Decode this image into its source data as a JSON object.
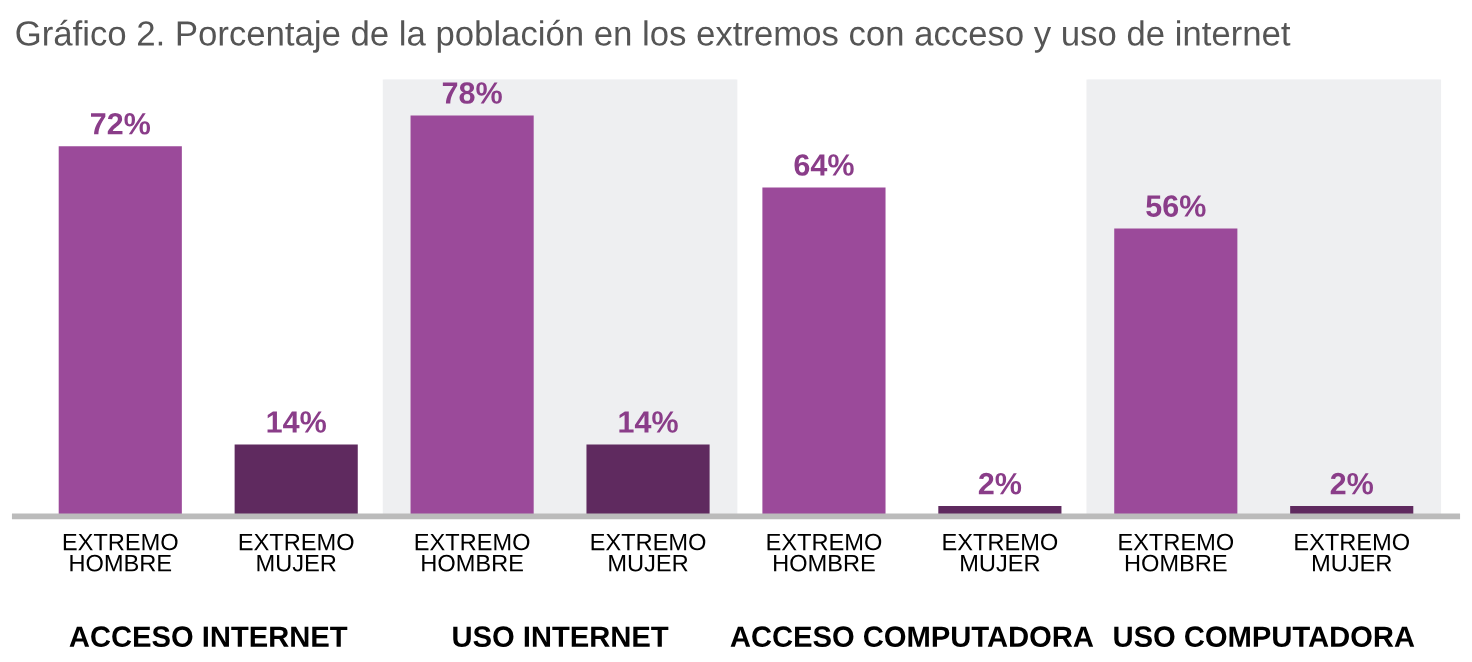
{
  "chart_data": {
    "type": "bar",
    "title": "Gráfico 2. Porcentaje de la población en los extremos con acceso y uso de internet",
    "categories": [
      "EXTREMO HOMBRE",
      "EXTREMO MUJER",
      "EXTREMO HOMBRE",
      "EXTREMO MUJER",
      "EXTREMO HOMBRE",
      "EXTREMO MUJER",
      "EXTREMO HOMBRE",
      "EXTREMO MUJER"
    ],
    "values": [
      72,
      14,
      78,
      14,
      64,
      2,
      56,
      2
    ],
    "colors": [
      "#9b4a9a",
      "#5f2a5f",
      "#9b4a9a",
      "#5f2a5f",
      "#9b4a9a",
      "#5f2a5f",
      "#9b4a9a",
      "#5f2a5f"
    ],
    "value_labels": [
      "72%",
      "14%",
      "78%",
      "14%",
      "64%",
      "2%",
      "56%",
      "2%"
    ],
    "ylim": [
      0,
      85
    ],
    "tick_labels": "x",
    "annotations": [
      "ACCESO INTERNET",
      "USO INTERNET",
      "ACCESO COMPUTADORA",
      "USO COMPUTADORA"
    ],
    "grid": false,
    "legend": false
  }
}
